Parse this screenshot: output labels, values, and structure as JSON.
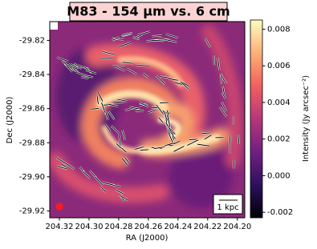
{
  "chart_data": {
    "type": "image",
    "title": "M83 - 154 μm vs. 6 cm",
    "x_label": "RA (J2000)",
    "y_label": "Dec (J2000)",
    "xlim": [
      204.3265,
      204.195
    ],
    "xticks": [
      204.32,
      {
        "value": 204.3,
        "label": "204.30"
      },
      204.28,
      204.26,
      204.24,
      204.22,
      {
        "value": 204.2,
        "label": "204.20"
      }
    ],
    "ylim": [
      -29.809,
      -29.924
    ],
    "yticks": [
      -29.82,
      -29.84,
      -29.86,
      -29.88,
      {
        "value": -29.9,
        "label": "-29.90"
      },
      -29.92
    ],
    "colorbar": {
      "label": "Intensity (Jy arcsec⁻²)",
      "cmap": "magma",
      "clim": [
        -0.0023,
        0.0085
      ],
      "ticks": [
        0.008,
        0.006,
        0.004,
        0.002,
        {
          "value": 0.0,
          "label": "0.000"
        },
        -0.002
      ]
    },
    "scale_bar": "1 kpc"
  }
}
